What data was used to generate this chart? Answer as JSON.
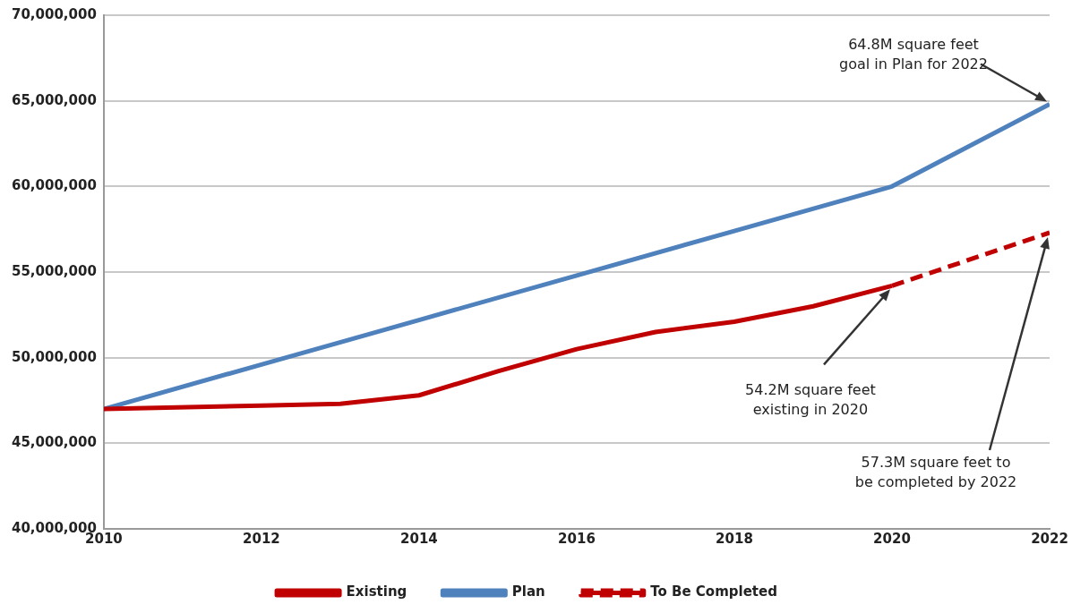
{
  "chart_data": {
    "type": "line",
    "x": [
      2010,
      2012,
      2013,
      2014,
      2015,
      2016,
      2017,
      2018,
      2019,
      2020
    ],
    "series": [
      {
        "name": "Existing",
        "color": "#c00000",
        "values": [
          47000000,
          47200000,
          47300000,
          47800000,
          49200000,
          50500000,
          51500000,
          52100000,
          53000000,
          54200000
        ]
      },
      {
        "name": "Plan",
        "color": "#4f81bd",
        "x": [
          2010,
          2012,
          2014,
          2016,
          2018,
          2020,
          2022
        ],
        "values": [
          47000000,
          49600000,
          52200000,
          54800000,
          57400000,
          60000000,
          64800000
        ]
      },
      {
        "name": "To Be Completed",
        "color": "#c00000",
        "line_style": "dashed",
        "x": [
          2020,
          2022
        ],
        "values": [
          54200000,
          57300000
        ]
      }
    ],
    "xlim": [
      2010,
      2022
    ],
    "xticks": [
      2010,
      2012,
      2014,
      2016,
      2018,
      2020,
      2022
    ],
    "ylim": [
      40000000,
      70000000
    ],
    "yticks": [
      {
        "value": 40000000,
        "label": "40,000,000"
      },
      {
        "value": 45000000,
        "label": "45,000,000"
      },
      {
        "value": 50000000,
        "label": "50,000,000"
      },
      {
        "value": 55000000,
        "label": "55,000,000"
      },
      {
        "value": 60000000,
        "label": "60,000,000"
      },
      {
        "value": 65000000,
        "label": "65,000,000"
      },
      {
        "value": 70000000,
        "label": "70,000,000"
      }
    ],
    "grid": "y",
    "legend": "bottom",
    "marker": "none",
    "line_style": "solid",
    "annotations": [
      "64.8M square feet\ngoal in Plan for 2022",
      "54.2M square feet\nexisting in 2020",
      "57.3M square feet to\nbe completed by 2022"
    ]
  }
}
